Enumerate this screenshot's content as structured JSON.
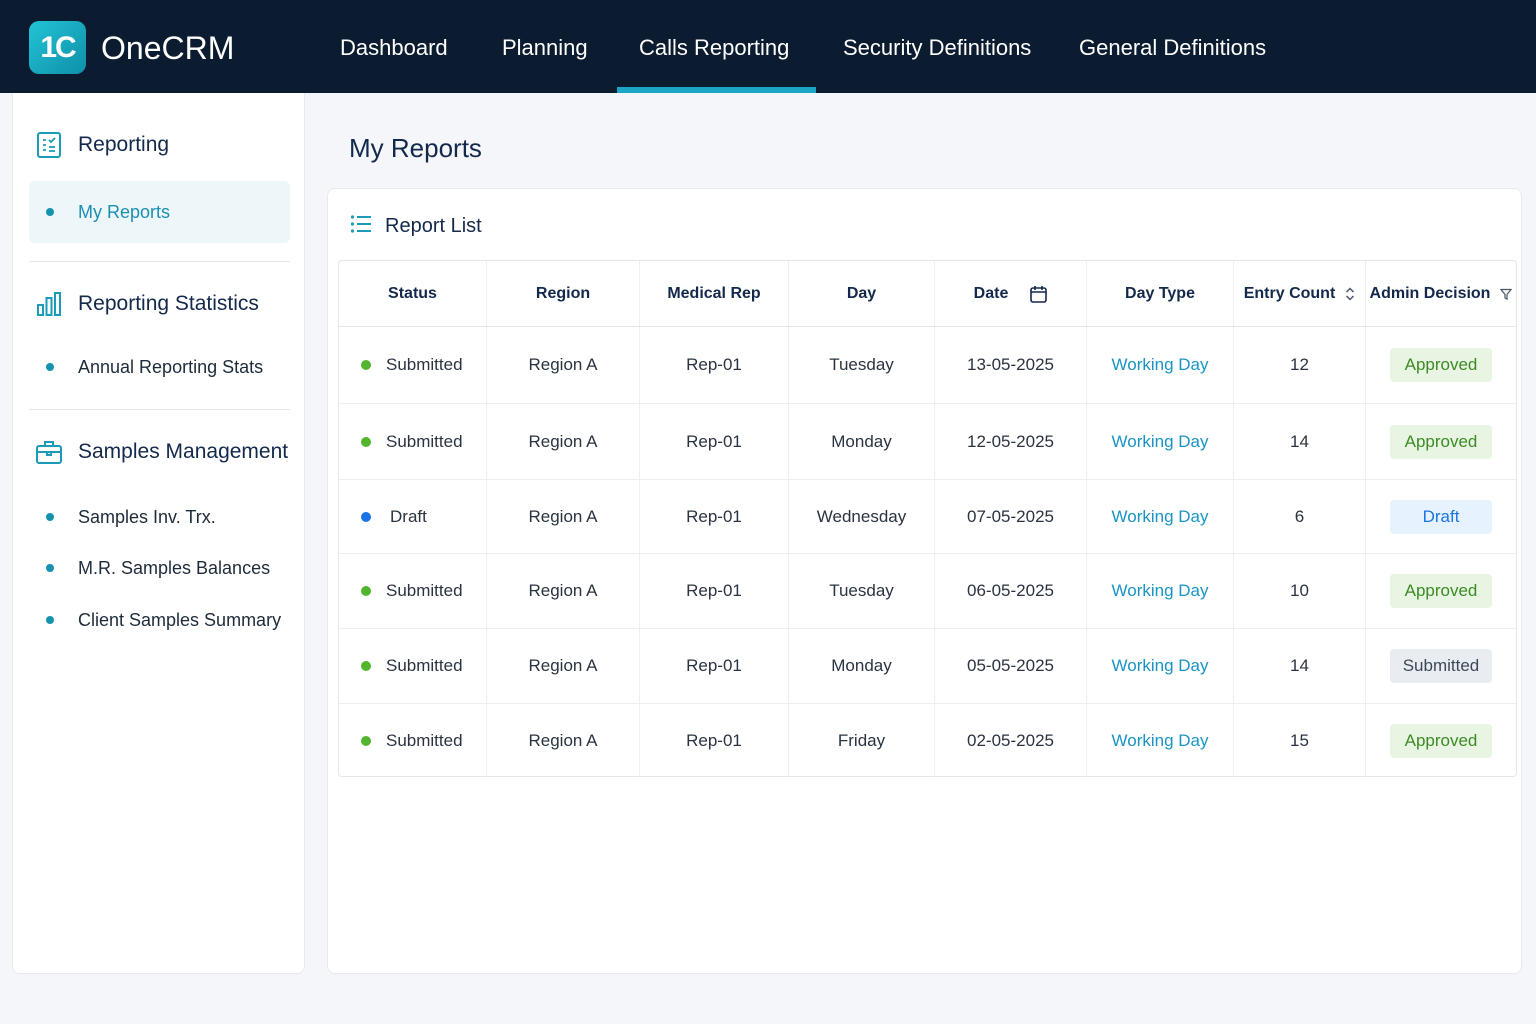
{
  "app": {
    "brand": "OneCRM",
    "logo_text": "1C"
  },
  "nav": {
    "items": [
      {
        "label": "Dashboard",
        "active": false
      },
      {
        "label": "Planning",
        "active": false
      },
      {
        "label": "Calls Reporting",
        "active": true
      },
      {
        "label": "Security Definitions",
        "active": false
      },
      {
        "label": "General Definitions",
        "active": false
      }
    ]
  },
  "sidebar": {
    "sections": [
      {
        "label": "Reporting",
        "icon": "report-icon",
        "items": [
          {
            "label": "My Reports",
            "active": true
          }
        ]
      },
      {
        "label": "Reporting Statistics",
        "icon": "bar-chart-icon",
        "items": [
          {
            "label": "Annual Reporting Stats",
            "active": false
          }
        ]
      },
      {
        "label": "Samples Management",
        "icon": "briefcase-icon",
        "items": [
          {
            "label": "Samples Inv. Trx.",
            "active": false
          },
          {
            "label": "M.R. Samples Balances",
            "active": false
          },
          {
            "label": "Client Samples Summary",
            "active": false
          }
        ]
      }
    ]
  },
  "main": {
    "title": "My Reports",
    "card_title": "Report List",
    "columns": [
      "Status",
      "Region",
      "Medical Rep",
      "Day",
      "Date",
      "Day Type",
      "Entry Count",
      "Admin Decision"
    ],
    "rows": [
      {
        "status": "Submitted",
        "region": "Region A",
        "rep": "Rep-01",
        "day": "Tuesday",
        "date": "13-05-2025",
        "day_type": "Working Day",
        "count": "12",
        "decision": "Approved"
      },
      {
        "status": "Submitted",
        "region": "Region A",
        "rep": "Rep-01",
        "day": "Monday",
        "date": "12-05-2025",
        "day_type": "Working Day",
        "count": "14",
        "decision": "Approved"
      },
      {
        "status": "Draft",
        "region": "Region A",
        "rep": "Rep-01",
        "day": "Wednesday",
        "date": "07-05-2025",
        "day_type": "Working Day",
        "count": "6",
        "decision": "Draft"
      },
      {
        "status": "Submitted",
        "region": "Region A",
        "rep": "Rep-01",
        "day": "Tuesday",
        "date": "06-05-2025",
        "day_type": "Working Day",
        "count": "10",
        "decision": "Approved"
      },
      {
        "status": "Submitted",
        "region": "Region A",
        "rep": "Rep-01",
        "day": "Monday",
        "date": "05-05-2025",
        "day_type": "Working Day",
        "count": "14",
        "decision": "Submitted"
      },
      {
        "status": "Submitted",
        "region": "Region A",
        "rep": "Rep-01",
        "day": "Friday",
        "date": "02-05-2025",
        "day_type": "Working Day",
        "count": "15",
        "decision": "Approved"
      }
    ]
  },
  "colors": {
    "nav_bg": "#0c1c30",
    "accent": "#1aa6c4",
    "status_submitted": "#52b52e",
    "status_draft": "#1b74e4",
    "approved_bg": "#e8f5e2",
    "approved_text": "#3d8a26",
    "draft_bg": "#e6f2fd",
    "draft_text": "#1b74e4",
    "submitted_bg": "#e9edf1",
    "submitted_text": "#3d4857"
  }
}
